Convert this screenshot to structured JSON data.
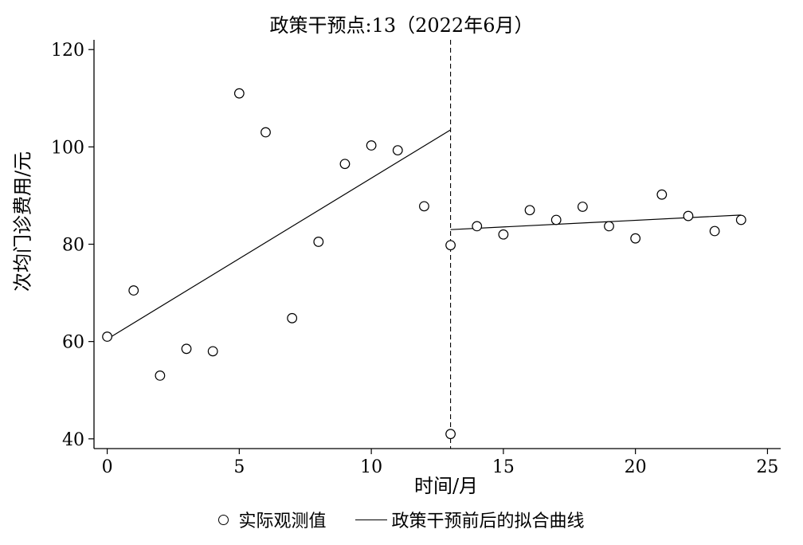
{
  "chart_data": {
    "type": "scatter",
    "title": "政策干预点:13（2022年6月）",
    "xlabel": "时间/月",
    "ylabel": "次均门诊费用/元",
    "xlim": [
      -0.5,
      25.5
    ],
    "ylim": [
      38,
      122
    ],
    "xticks": [
      0,
      5,
      10,
      15,
      20,
      25
    ],
    "yticks": [
      40,
      60,
      80,
      100,
      120
    ],
    "legend_position": "bottom",
    "intervention_x": 13,
    "series": [
      {
        "name": "实际观测值",
        "kind": "scatter",
        "x": [
          0,
          1,
          2,
          3,
          4,
          5,
          6,
          7,
          8,
          9,
          10,
          11,
          12,
          13,
          13,
          14,
          15,
          16,
          17,
          18,
          19,
          20,
          21,
          22,
          23,
          24
        ],
        "y": [
          61,
          70.5,
          53,
          58.5,
          58,
          111,
          103,
          64.8,
          80.5,
          96.5,
          100.3,
          99.3,
          87.8,
          79.8,
          41,
          83.7,
          82,
          87,
          85,
          87.7,
          83.7,
          81.2,
          90.2,
          85.8,
          82.7,
          85
        ]
      },
      {
        "name": "政策干预前后的拟合曲线",
        "kind": "line",
        "segments": [
          {
            "x": [
              0,
              13
            ],
            "y": [
              60.5,
              103.5
            ]
          },
          {
            "x": [
              13,
              24
            ],
            "y": [
              83,
              86
            ]
          }
        ]
      }
    ]
  }
}
